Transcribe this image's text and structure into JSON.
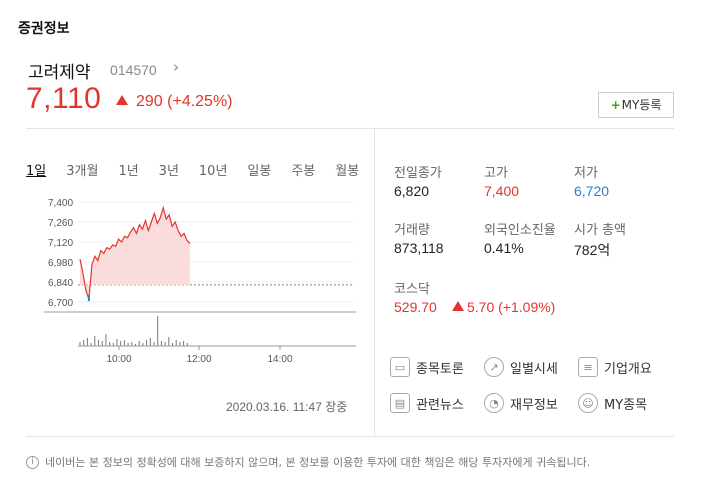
{
  "section_title": "증권정보",
  "stock": {
    "name": "고려제약",
    "code": "014570",
    "chevron": "›",
    "price": "7,110",
    "change": "290 (+4.25%)"
  },
  "my_button": {
    "plus": "+",
    "label": "MY등록"
  },
  "tabs": [
    "1일",
    "3개월",
    "1년",
    "3년",
    "10년",
    "일봉",
    "주봉",
    "월봉"
  ],
  "timestamp": "2020.03.16. 11:47 장중",
  "stats": {
    "prev_close": {
      "label": "전일종가",
      "value": "6,820"
    },
    "high": {
      "label": "고가",
      "value": "7,400"
    },
    "low": {
      "label": "저가",
      "value": "6,720"
    },
    "volume": {
      "label": "거래량",
      "value": "873,118"
    },
    "foreign": {
      "label": "외국인소진율",
      "value": "0.41%"
    },
    "market_cap": {
      "label": "시가 총액",
      "value": "782억"
    },
    "index": {
      "label": "코스닥",
      "value": "529.70",
      "change": "5.70 (+1.09%)"
    }
  },
  "links": [
    {
      "label": "종목토론",
      "icon": "chat-icon"
    },
    {
      "label": "일별시세",
      "icon": "trend-icon"
    },
    {
      "label": "기업개요",
      "icon": "list-icon"
    },
    {
      "label": "관련뉴스",
      "icon": "news-icon"
    },
    {
      "label": "재무정보",
      "icon": "pie-icon"
    },
    {
      "label": "MY종목",
      "icon": "user-icon"
    }
  ],
  "footer": "네이버는 본 정보의 정확성에 대해 보증하지 않으며, 본 정보를 이용한 투자에 대한 책임은 해당 투자자에게 귀속됩니다.",
  "colors": {
    "up": "#e4342f",
    "down": "#2f80d1",
    "green": "#2db400"
  },
  "chart_data": {
    "type": "line",
    "y_ticks": [
      "7,400",
      "7,260",
      "7,120",
      "6,980",
      "6,840",
      "6,700"
    ],
    "x_ticks": [
      "10:00",
      "12:00",
      "14:00"
    ],
    "ylim": [
      6700,
      7400
    ],
    "prev_close": 6820,
    "series": [
      {
        "values": [
          7000,
          6900,
          6780,
          6720,
          6960,
          7020,
          6990,
          7060,
          7040,
          7080,
          7070,
          7100,
          7090,
          7140,
          7120,
          7160,
          7150,
          7190,
          7220,
          7180,
          7240,
          7210,
          7270,
          7200,
          7260,
          7320,
          7250,
          7290,
          7360,
          7280,
          7310,
          7230,
          7260,
          7200,
          7160,
          7180,
          7130,
          7110
        ]
      }
    ]
  }
}
